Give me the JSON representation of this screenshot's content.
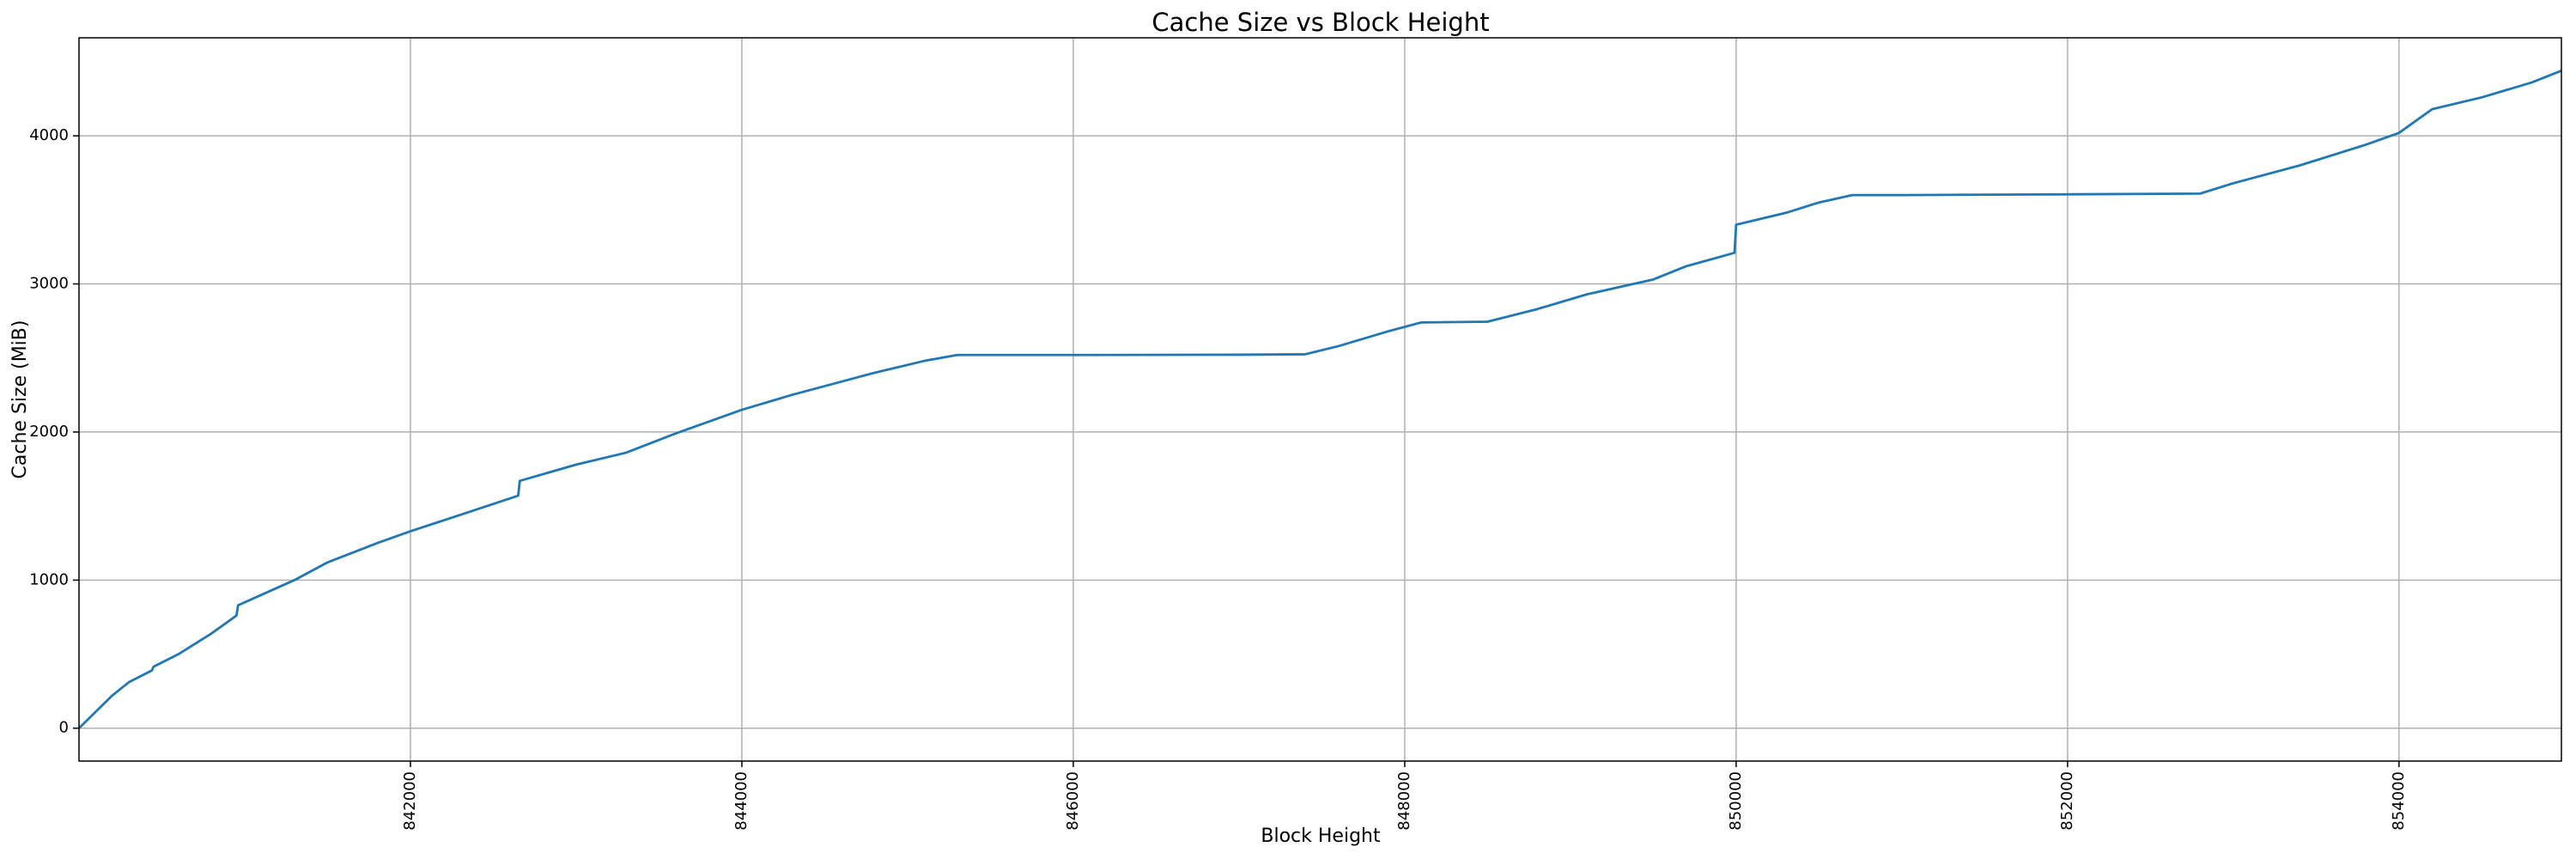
{
  "chart_data": {
    "type": "line",
    "title": "Cache Size vs Block Height",
    "x_label": "Block Height",
    "y_label": "Cache Size (MiB)",
    "x": [
      840000,
      840100,
      840200,
      840300,
      840440,
      840450,
      840600,
      840800,
      840950,
      840960,
      841100,
      841300,
      841500,
      841800,
      842000,
      842300,
      842650,
      842660,
      843000,
      843300,
      843600,
      844000,
      844300,
      844600,
      844800,
      845100,
      845300,
      846000,
      847000,
      847400,
      847600,
      847900,
      848100,
      848500,
      848800,
      849100,
      849500,
      849700,
      849990,
      850000,
      850300,
      850500,
      850700,
      851000,
      852000,
      852800,
      853000,
      853400,
      853800,
      854000,
      854200,
      854500,
      854800,
      854980
    ],
    "series": [
      {
        "name": "Cache Size",
        "color": "#1f77b4",
        "values": [
          0,
          110,
          220,
          310,
          390,
          415,
          500,
          640,
          760,
          830,
          900,
          1000,
          1120,
          1250,
          1330,
          1440,
          1570,
          1670,
          1780,
          1860,
          1990,
          2150,
          2250,
          2340,
          2400,
          2480,
          2520,
          2520,
          2522,
          2525,
          2580,
          2680,
          2740,
          2745,
          2830,
          2930,
          3030,
          3120,
          3210,
          3400,
          3480,
          3550,
          3600,
          3600,
          3605,
          3610,
          3680,
          3800,
          3940,
          4020,
          4180,
          4260,
          4360,
          4440
        ]
      }
    ],
    "xlim": [
      840000,
      854980
    ],
    "ylim": [
      -222,
      4662
    ],
    "xticks": [
      842000,
      844000,
      846000,
      848000,
      850000,
      852000,
      854000
    ],
    "yticks": [
      0,
      1000,
      2000,
      3000,
      4000
    ],
    "grid": true
  }
}
